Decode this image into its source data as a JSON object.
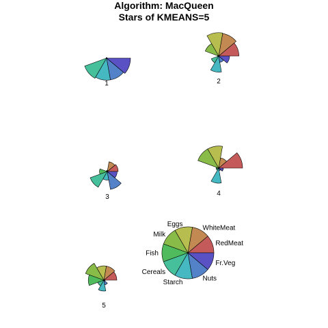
{
  "chart_data": {
    "type": "star-segments",
    "title": "Algorithm: MacQueen",
    "subtitle": "Stars of KMEANS=5",
    "variables": [
      "RedMeat",
      "WhiteMeat",
      "Eggs",
      "Milk",
      "Fish",
      "Cereals",
      "Starch",
      "Nuts",
      "Fr.Veg"
    ],
    "colors": [
      "#c55a5a",
      "#c28a52",
      "#b8bd4f",
      "#88bb48",
      "#4fbb5c",
      "#45c09a",
      "#45b8c2",
      "#5382c8",
      "#5a52c4"
    ],
    "stars": [
      {
        "label": "1",
        "values": [
          0.02,
          0.02,
          0.02,
          0.02,
          0.02,
          0.9,
          0.85,
          0.85,
          0.92
        ]
      },
      {
        "label": "2",
        "values": [
          0.78,
          0.88,
          0.9,
          0.55,
          0.05,
          0.3,
          0.62,
          0.25,
          0.42
        ]
      },
      {
        "label": "3",
        "values": [
          0.42,
          0.38,
          0.05,
          0.04,
          0.3,
          0.7,
          0.33,
          0.7,
          0.38
        ]
      },
      {
        "label": "4",
        "values": [
          0.92,
          0.4,
          0.85,
          0.85,
          0.1,
          0.1,
          0.58,
          0.1,
          0.18
        ]
      },
      {
        "label": "5",
        "values": [
          0.5,
          0.55,
          0.55,
          0.75,
          0.6,
          0.25,
          0.42,
          0.18,
          0.05
        ]
      }
    ],
    "key_values": [
      1,
      1,
      1,
      1,
      1,
      1,
      1,
      1,
      1
    ]
  }
}
